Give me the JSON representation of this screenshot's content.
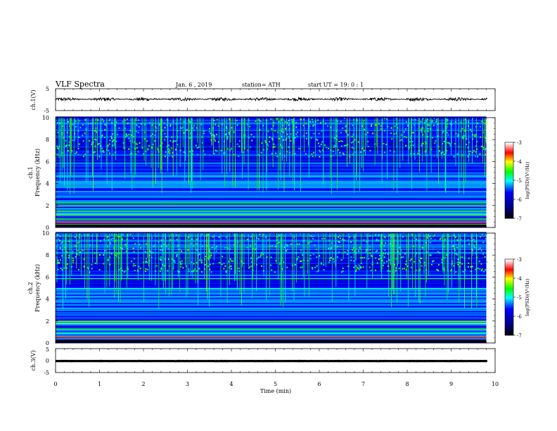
{
  "header": {
    "title": "VLF  Spectra",
    "date": "Jan. 6  , 2019",
    "station": "station= ATH",
    "start": "start  UT  =   19: 0   : 1"
  },
  "chart_data": [
    {
      "type": "line",
      "panel": "ch1-waveform",
      "ylabel": "ch.1(V)",
      "ylim": [
        -5,
        5
      ],
      "yticks": [
        "5",
        "-5"
      ],
      "xlim": [
        0,
        10
      ],
      "x_unit": "min",
      "series": [
        {
          "level_v": 0.2,
          "noise_amplitude_v": 0.8
        }
      ]
    },
    {
      "type": "heatmap",
      "panel": "ch1-spectrogram",
      "ylabel": "ch.1\nFrequency  (kHz)",
      "ylim": [
        0,
        10
      ],
      "yticks": [
        "0",
        "2",
        "4",
        "6",
        "8",
        "10"
      ],
      "xlim": [
        0,
        9.8
      ],
      "colorbar": {
        "label": "log(PSD)(V²/Hz)",
        "range": [
          -7,
          -3
        ],
        "ticks": [
          "-3",
          "-4",
          "-5",
          "-6",
          "-7"
        ]
      },
      "bands_khz": [
        0.3,
        0.5,
        0.8,
        1.2,
        1.5,
        2.0,
        2.3,
        2.8,
        3.3,
        3.8,
        4.2,
        5.0,
        5.9,
        6.6
      ],
      "sferic_count": 180
    },
    {
      "type": "heatmap",
      "panel": "ch2-spectrogram",
      "ylabel": "ch.2\nFrequency  (kHz)",
      "ylim": [
        0,
        10
      ],
      "yticks": [
        "0",
        "2",
        "4",
        "6",
        "8",
        "10"
      ],
      "xlim": [
        0,
        9.8
      ],
      "colorbar": {
        "label": "log(PSD)(V²/Hz)",
        "range": [
          -7,
          -3
        ],
        "ticks": [
          "-3",
          "-4",
          "-5",
          "-6",
          "-7"
        ]
      },
      "bands_khz": [
        0.2,
        0.5,
        0.9,
        1.3,
        1.8,
        2.0,
        2.6,
        3.0,
        3.5,
        4.0,
        4.6,
        5.0,
        5.9,
        6.2
      ],
      "sferic_count": 160
    },
    {
      "type": "line",
      "panel": "ch3-waveform",
      "ylabel": "ch.3(V)",
      "ylim": [
        -5,
        5
      ],
      "yticks": [
        "5",
        "0",
        "-5"
      ],
      "xlim": [
        0,
        10
      ],
      "xlabel": "Time  (min)",
      "xticks": [
        "0",
        "1",
        "2",
        "3",
        "4",
        "5",
        "6",
        "7",
        "8",
        "9",
        "10"
      ],
      "series": [
        {
          "level_v": -0.2,
          "noise_amplitude_v": 0.05
        }
      ]
    }
  ]
}
